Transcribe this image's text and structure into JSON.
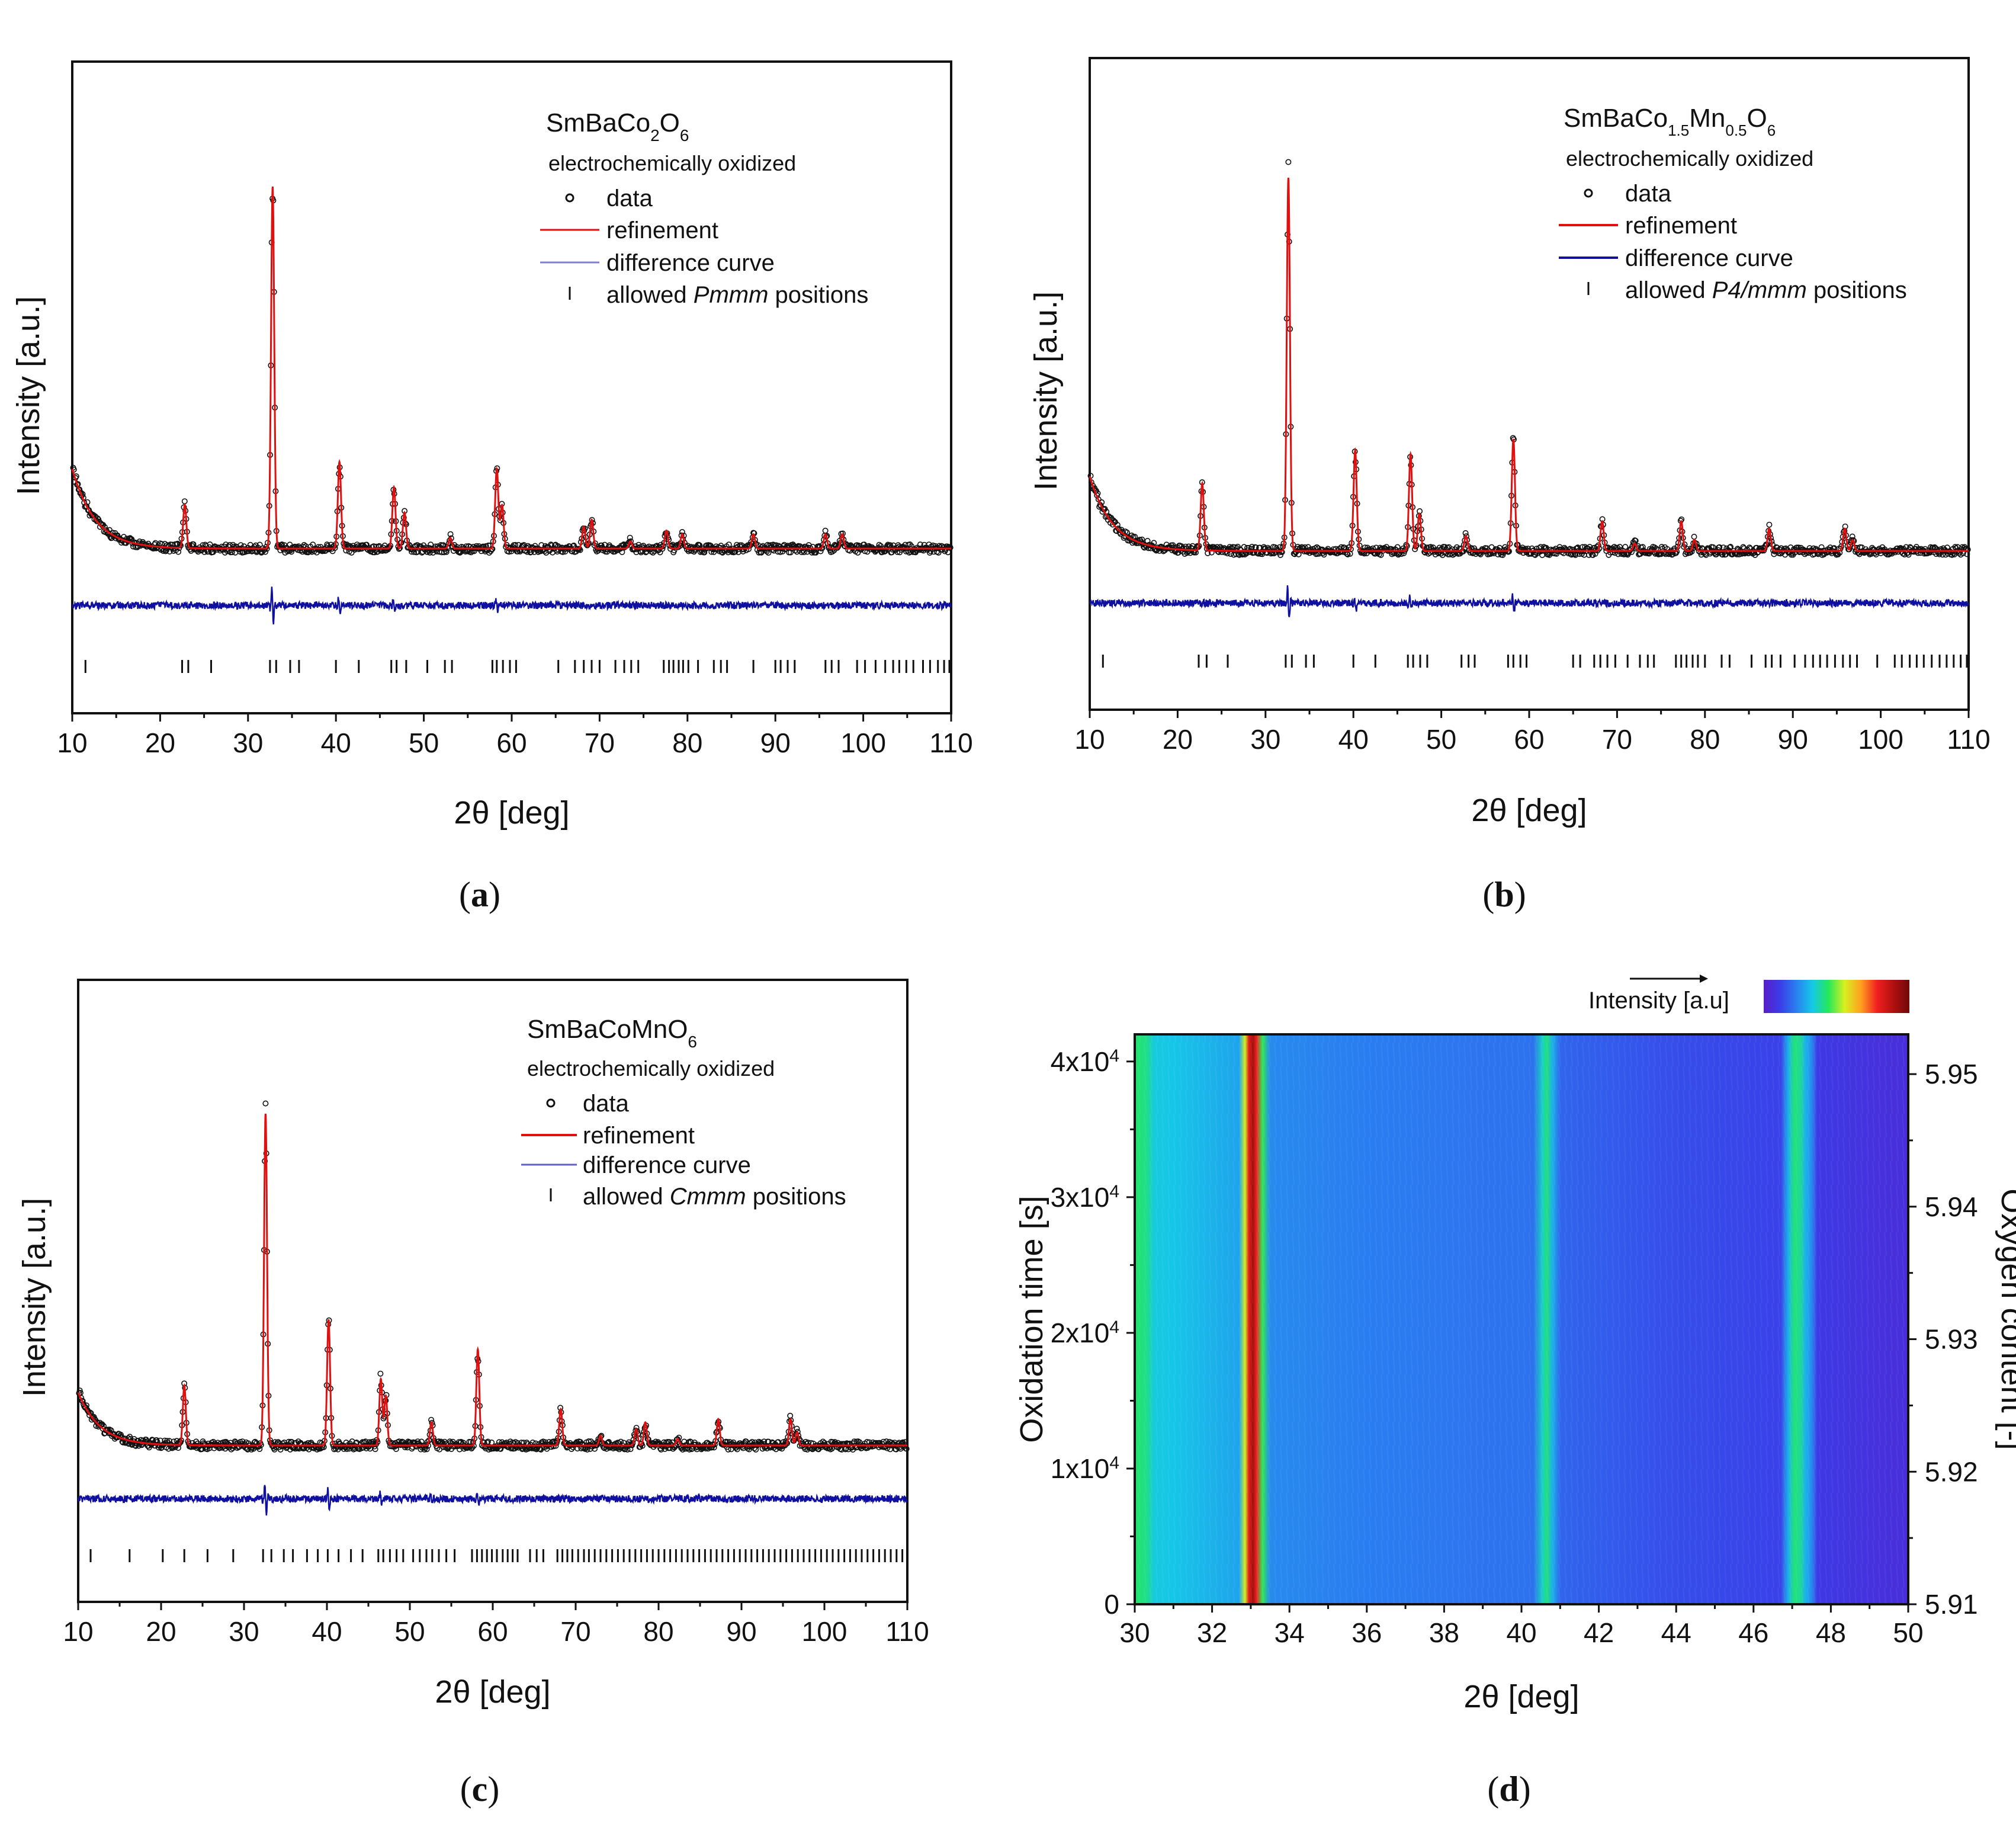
{
  "figure": {
    "panels": [
      "a",
      "b",
      "c"
    ]
  },
  "colors": {
    "data": "#111111",
    "refinement": "#e01010",
    "difference": "#1010a0",
    "difference_legend_a": "#8080d0",
    "tick": "#111111"
  },
  "chart_data": [
    {
      "type": "line",
      "panel_label": "(a)",
      "title": "SmBaCo2O6",
      "title_parts": {
        "base1": "SmBaCo",
        "sub1": "2",
        "base2": "O",
        "sub2": "6"
      },
      "subtitle": "electrochemically oxidized",
      "xlabel": "2θ [deg]",
      "ylabel": "Intensity [a.u.]",
      "xlim": [
        10,
        110
      ],
      "x_ticks": [
        10,
        20,
        30,
        40,
        50,
        60,
        70,
        80,
        90,
        100,
        110
      ],
      "legend": {
        "data": "data",
        "refinement": "refinement",
        "difference": "difference curve",
        "positions_prefix": "allowed ",
        "positions_group": "Pmmm",
        "positions_suffix": " positions"
      },
      "background": {
        "start": 22,
        "decay": 2.6,
        "base": 3
      },
      "peaks": [
        {
          "x": 22.8,
          "h": 12
        },
        {
          "x": 32.8,
          "h": 100
        },
        {
          "x": 40.4,
          "h": 24
        },
        {
          "x": 46.6,
          "h": 17
        },
        {
          "x": 47.8,
          "h": 10
        },
        {
          "x": 53.0,
          "h": 3
        },
        {
          "x": 58.3,
          "h": 22
        },
        {
          "x": 58.9,
          "h": 12
        },
        {
          "x": 68.2,
          "h": 6
        },
        {
          "x": 69.1,
          "h": 8
        },
        {
          "x": 73.5,
          "h": 2
        },
        {
          "x": 77.6,
          "h": 5
        },
        {
          "x": 79.4,
          "h": 4
        },
        {
          "x": 87.5,
          "h": 4
        },
        {
          "x": 95.7,
          "h": 4
        },
        {
          "x": 97.6,
          "h": 4
        }
      ],
      "difference_spikes": [
        {
          "x": 32.8,
          "a": 9
        },
        {
          "x": 40.4,
          "a": 4
        },
        {
          "x": 46.6,
          "a": 3
        },
        {
          "x": 58.3,
          "a": 3
        }
      ],
      "allowed_positions": [
        11.5,
        22.5,
        23.2,
        25.8,
        32.5,
        33.2,
        34.8,
        35.8,
        40.0,
        42.6,
        46.3,
        46.9,
        48.0,
        50.4,
        52.4,
        53.2,
        57.8,
        58.3,
        59.0,
        59.8,
        60.5,
        65.3,
        67.2,
        68.2,
        69.1,
        70.0,
        71.8,
        72.8,
        73.6,
        74.4,
        77.3,
        77.9,
        78.4,
        79.0,
        79.5,
        80.1,
        81.2,
        83.0,
        83.8,
        84.5,
        87.5,
        90.0,
        90.6,
        91.4,
        92.2,
        95.7,
        96.4,
        97.2,
        99.3,
        100.2,
        101.4,
        102.5,
        103.4,
        104.1,
        104.9,
        105.7,
        106.8,
        107.6,
        108.5,
        109.2,
        109.8
      ]
    },
    {
      "type": "line",
      "panel_label": "(b)",
      "title": "SmBaCo1.5Mn0.5O6",
      "title_parts": {
        "base1": "SmBaCo",
        "sub1": "1.5",
        "mid": "Mn",
        "sub2": "0.5",
        "base2": "O",
        "sub3": "6"
      },
      "subtitle": "electrochemically oxidized",
      "xlabel": "2θ [deg]",
      "ylabel": "Intensity [a.u.]",
      "xlim": [
        10,
        110
      ],
      "x_ticks": [
        10,
        20,
        30,
        40,
        50,
        60,
        70,
        80,
        90,
        100,
        110
      ],
      "legend": {
        "data": "data",
        "refinement": "refinement",
        "difference": "difference curve",
        "positions_prefix": "allowed ",
        "positions_group": "P4/mmm",
        "positions_suffix": " positions"
      },
      "background": {
        "start": 20,
        "decay": 2.6,
        "base": 2
      },
      "peaks": [
        {
          "x": 22.8,
          "h": 18
        },
        {
          "x": 32.6,
          "h": 100
        },
        {
          "x": 40.2,
          "h": 27
        },
        {
          "x": 46.5,
          "h": 26
        },
        {
          "x": 47.5,
          "h": 10
        },
        {
          "x": 52.8,
          "h": 4
        },
        {
          "x": 58.2,
          "h": 30
        },
        {
          "x": 68.3,
          "h": 8
        },
        {
          "x": 72.0,
          "h": 2
        },
        {
          "x": 77.3,
          "h": 8
        },
        {
          "x": 78.8,
          "h": 3
        },
        {
          "x": 87.3,
          "h": 6
        },
        {
          "x": 95.9,
          "h": 6
        },
        {
          "x": 96.8,
          "h": 3
        }
      ],
      "difference_spikes": [
        {
          "x": 32.6,
          "a": 9
        },
        {
          "x": 40.2,
          "a": 4
        },
        {
          "x": 46.5,
          "a": 3
        },
        {
          "x": 58.2,
          "a": 4
        }
      ],
      "allowed_positions": [
        11.5,
        22.4,
        23.3,
        25.7,
        32.3,
        33.0,
        34.6,
        35.5,
        40.0,
        42.5,
        46.2,
        46.8,
        47.6,
        48.4,
        52.3,
        53.1,
        53.8,
        57.6,
        58.2,
        59.0,
        59.7,
        65.0,
        65.8,
        67.4,
        68.1,
        68.9,
        69.8,
        71.2,
        72.6,
        73.5,
        74.2,
        76.7,
        77.3,
        77.9,
        78.6,
        79.2,
        80.0,
        81.9,
        82.8,
        85.3,
        86.9,
        87.6,
        88.6,
        90.2,
        91.4,
        92.3,
        93.1,
        93.9,
        94.8,
        95.7,
        96.5,
        97.3,
        99.6,
        101.6,
        102.4,
        103.3,
        104.1,
        104.9,
        105.8,
        106.7,
        107.5,
        108.3,
        109.1,
        109.8
      ]
    },
    {
      "type": "line",
      "panel_label": "(c)",
      "title": "SmBaCoMnO6",
      "title_parts": {
        "base1": "SmBaCoMnO",
        "sub1": "6"
      },
      "subtitle": "electrochemically oxidized",
      "xlabel": "2θ [deg]",
      "ylabel": "Intensity [a.u.]",
      "xlim": [
        10,
        110
      ],
      "x_ticks": [
        10,
        20,
        30,
        40,
        50,
        60,
        70,
        80,
        90,
        100,
        110
      ],
      "legend": {
        "data": "data",
        "refinement": "refinement",
        "difference": "difference curve",
        "positions_prefix": "allowed ",
        "positions_group": "Cmmm",
        "positions_suffix": " positions"
      },
      "background": {
        "start": 16,
        "decay": 2.6,
        "base": 2
      },
      "peaks": [
        {
          "x": 22.8,
          "h": 18
        },
        {
          "x": 32.6,
          "h": 100
        },
        {
          "x": 40.2,
          "h": 38
        },
        {
          "x": 46.5,
          "h": 20
        },
        {
          "x": 47.1,
          "h": 15
        },
        {
          "x": 52.6,
          "h": 7
        },
        {
          "x": 58.2,
          "h": 29
        },
        {
          "x": 68.2,
          "h": 11
        },
        {
          "x": 73.0,
          "h": 3
        },
        {
          "x": 77.3,
          "h": 5
        },
        {
          "x": 78.4,
          "h": 7
        },
        {
          "x": 82.3,
          "h": 2
        },
        {
          "x": 87.2,
          "h": 8
        },
        {
          "x": 95.9,
          "h": 8
        },
        {
          "x": 96.7,
          "h": 4
        }
      ],
      "difference_spikes": [
        {
          "x": 32.6,
          "a": 9
        },
        {
          "x": 40.2,
          "a": 5
        },
        {
          "x": 46.5,
          "a": 3
        },
        {
          "x": 58.2,
          "a": 3
        },
        {
          "x": 52.6,
          "a": 2
        }
      ],
      "allowed_positions": [
        11.5,
        16.2,
        20.2,
        22.8,
        25.6,
        28.7,
        32.3,
        33.3,
        34.8,
        35.9,
        37.6,
        38.9,
        40.1,
        41.4,
        42.9,
        44.3,
        46.2,
        46.8,
        47.6,
        48.4,
        49.2,
        50.4,
        51.2,
        52.0,
        52.7,
        53.5,
        54.4,
        55.4,
        57.5,
        58.1,
        58.7,
        59.3,
        59.9,
        60.5,
        61.2,
        61.8,
        62.4,
        63.0,
        64.5,
        65.3,
        66.1,
        67.8,
        68.4,
        69.0,
        69.6,
        70.3,
        71.0,
        71.6,
        72.3,
        73.0,
        73.7,
        74.4,
        75.1,
        75.8,
        76.5,
        77.2,
        77.9,
        78.6,
        79.3,
        80.0,
        80.7,
        81.4,
        82.1,
        82.8,
        83.5,
        84.2,
        84.9,
        85.6,
        86.3,
        87.0,
        87.7,
        88.4,
        89.1,
        89.8,
        90.5,
        91.2,
        91.9,
        92.6,
        93.3,
        94.0,
        94.7,
        95.4,
        96.1,
        96.8,
        97.5,
        98.2,
        98.9,
        99.6,
        100.3,
        101.0,
        101.7,
        102.4,
        103.1,
        103.8,
        104.5,
        105.2,
        105.9,
        106.6,
        107.3,
        108.0,
        108.7,
        109.4
      ]
    },
    {
      "type": "heatmap",
      "panel_label": "(d)",
      "xlabel": "2θ [deg]",
      "ylabel": "Oxidation time [s]",
      "y2label": "Oxygen content [-]",
      "colorbar_label": "Intensity [a.u]",
      "colormap": [
        "#5a1ec8",
        "#3a3ce8",
        "#2a7ef0",
        "#15c8e8",
        "#25e85a",
        "#d8f020",
        "#ffa020",
        "#f02020",
        "#b01010",
        "#700808"
      ],
      "xlim": [
        30,
        50
      ],
      "x_ticks": [
        30,
        32,
        34,
        36,
        38,
        40,
        42,
        44,
        46,
        48,
        50
      ],
      "ylim": [
        0,
        42000
      ],
      "y_ticks": [
        {
          "value": 0,
          "label": "0",
          "base": "",
          "exp": ""
        },
        {
          "value": 10000,
          "label": "1x10^4",
          "base": "1x10",
          "exp": "4"
        },
        {
          "value": 20000,
          "label": "2x10^4",
          "base": "2x10",
          "exp": "4"
        },
        {
          "value": 30000,
          "label": "3x10^4",
          "base": "3x10",
          "exp": "4"
        },
        {
          "value": 40000,
          "label": "4x10^4",
          "base": "4x10",
          "exp": "4"
        }
      ],
      "y2lim": [
        5.91,
        5.953
      ],
      "y2_ticks": [
        {
          "value": 5.91,
          "label": "5.91"
        },
        {
          "value": 5.92,
          "label": "5.92"
        },
        {
          "value": 5.93,
          "label": "5.93"
        },
        {
          "value": 5.94,
          "label": "5.94"
        },
        {
          "value": 5.95,
          "label": "5.95"
        }
      ],
      "intensity_profile": [
        {
          "x": 30.0,
          "v": 0.43
        },
        {
          "x": 30.3,
          "v": 0.41
        },
        {
          "x": 30.5,
          "v": 0.34
        },
        {
          "x": 31.0,
          "v": 0.33
        },
        {
          "x": 32.0,
          "v": 0.3
        },
        {
          "x": 32.7,
          "v": 0.28
        },
        {
          "x": 32.85,
          "v": 0.55
        },
        {
          "x": 32.95,
          "v": 0.8
        },
        {
          "x": 33.05,
          "v": 0.92
        },
        {
          "x": 33.15,
          "v": 0.78
        },
        {
          "x": 33.3,
          "v": 0.45
        },
        {
          "x": 33.5,
          "v": 0.24
        },
        {
          "x": 36.0,
          "v": 0.22
        },
        {
          "x": 40.3,
          "v": 0.2
        },
        {
          "x": 40.55,
          "v": 0.36
        },
        {
          "x": 40.65,
          "v": 0.42
        },
        {
          "x": 40.8,
          "v": 0.3
        },
        {
          "x": 41.0,
          "v": 0.18
        },
        {
          "x": 44.0,
          "v": 0.14
        },
        {
          "x": 46.7,
          "v": 0.12
        },
        {
          "x": 46.9,
          "v": 0.3
        },
        {
          "x": 47.05,
          "v": 0.42
        },
        {
          "x": 47.2,
          "v": 0.4
        },
        {
          "x": 47.35,
          "v": 0.3
        },
        {
          "x": 47.5,
          "v": 0.24
        },
        {
          "x": 47.65,
          "v": 0.1
        },
        {
          "x": 50.0,
          "v": 0.06
        }
      ]
    }
  ]
}
